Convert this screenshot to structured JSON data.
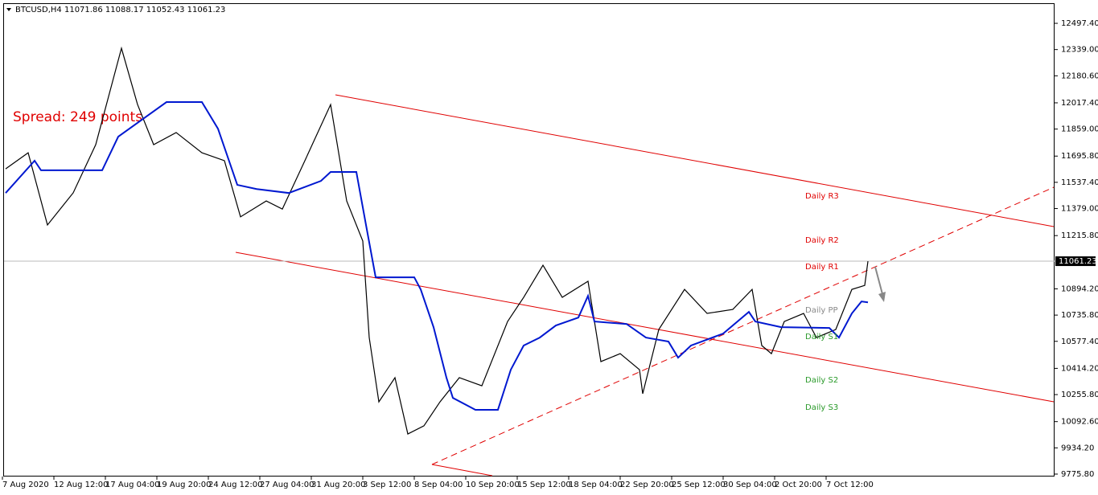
{
  "chart_data": {
    "type": "line",
    "title": "BTCUSD,H4  11071.86 11088.17 11052.43 11061.23",
    "subtitle": "Spread: 249 points",
    "xlim": [
      0,
      327
    ],
    "xticks": [
      {
        "value": 0,
        "label": "7 Aug 2020"
      },
      {
        "value": 16,
        "label": "12 Aug 12:00"
      },
      {
        "value": 32,
        "label": "17 Aug 04:00"
      },
      {
        "value": 48,
        "label": "19 Aug 20:00"
      },
      {
        "value": 64,
        "label": "24 Aug 12:00"
      },
      {
        "value": 80,
        "label": "27 Aug 04:00"
      },
      {
        "value": 96,
        "label": "31 Aug 20:00"
      },
      {
        "value": 112,
        "label": "3 Sep 12:00"
      },
      {
        "value": 128,
        "label": "8 Sep 04:00"
      },
      {
        "value": 144,
        "label": "10 Sep 20:00"
      },
      {
        "value": 160,
        "label": "15 Sep 12:00"
      },
      {
        "value": 176,
        "label": "18 Sep 04:00"
      },
      {
        "value": 192,
        "label": "22 Sep 20:00"
      },
      {
        "value": 208,
        "label": "25 Sep 12:00"
      },
      {
        "value": 224,
        "label": "30 Sep 04:00"
      },
      {
        "value": 240,
        "label": "2 Oct 20:00"
      },
      {
        "value": 256,
        "label": "7 Oct 12:00"
      }
    ],
    "ylim": [
      9766,
      12614
    ],
    "yticks": [
      {
        "value": 12497.4,
        "label": "12497.40"
      },
      {
        "value": 12339,
        "label": "12339.00"
      },
      {
        "value": 12180.6,
        "label": "12180.60"
      },
      {
        "value": 12017.4,
        "label": "12017.40"
      },
      {
        "value": 11859,
        "label": "11859.00"
      },
      {
        "value": 11695.8,
        "label": "11695.80"
      },
      {
        "value": 11537.4,
        "label": "11537.40"
      },
      {
        "value": 11379,
        "label": "11379.00"
      },
      {
        "value": 11215.8,
        "label": "11215.80"
      },
      {
        "value": 10894.2,
        "label": "10894.20"
      },
      {
        "value": 10735.8,
        "label": "10735.80"
      },
      {
        "value": 10577.4,
        "label": "10577.40"
      },
      {
        "value": 10414.2,
        "label": "10414.20"
      },
      {
        "value": 10255.8,
        "label": "10255.80"
      },
      {
        "value": 10092.6,
        "label": "10092.60"
      },
      {
        "value": 9934.2,
        "label": "9934.20"
      },
      {
        "value": 9775.8,
        "label": "9775.80"
      }
    ],
    "current_price": 11061.23,
    "series": [
      {
        "color": "#000000",
        "x": [
          1,
          8,
          14,
          22,
          29,
          37,
          42,
          47,
          54,
          62,
          69,
          74,
          82,
          87,
          94,
          102,
          107,
          112,
          114,
          117,
          122,
          126,
          131,
          136,
          142,
          149,
          157,
          162,
          168,
          174,
          182,
          186,
          192,
          198,
          199,
          204,
          212,
          219,
          227,
          233,
          236,
          239,
          243,
          249,
          253,
          259,
          264,
          268,
          269
        ],
        "values": [
          11619,
          11716,
          11280,
          11474,
          11765,
          12347,
          12007,
          11765,
          11838,
          11716,
          11668,
          11329,
          11425,
          11376,
          11668,
          12007,
          11425,
          11183,
          10600,
          10212,
          10358,
          10018,
          10067,
          10212,
          10358,
          10309,
          10697,
          10843,
          11037,
          10843,
          10940,
          10455,
          10503,
          10406,
          10261,
          10649,
          10891,
          10746,
          10770,
          10891,
          10552,
          10503,
          10697,
          10746,
          10600,
          10649,
          10891,
          10915,
          11061
        ]
      },
      {
        "color": "#0018d0",
        "x": [
          1,
          10,
          12,
          31,
          36,
          51,
          62,
          67,
          73,
          79,
          89,
          99,
          102,
          110,
          113,
          116,
          128,
          130,
          134,
          138,
          140,
          147,
          154,
          158,
          162,
          167,
          172,
          179,
          182,
          184,
          194,
          200,
          207,
          210,
          214,
          224,
          232,
          234,
          242,
          257,
          260,
          264,
          267,
          269
        ],
        "values": [
          11473,
          11668,
          11610,
          11610,
          11813,
          12022,
          12022,
          11861,
          11522,
          11497,
          11473,
          11546,
          11600,
          11600,
          11280,
          10964,
          10964,
          10891,
          10663,
          10358,
          10236,
          10164,
          10164,
          10406,
          10552,
          10600,
          10673,
          10721,
          10852,
          10697,
          10682,
          10600,
          10576,
          10479,
          10552,
          10624,
          10755,
          10697,
          10663,
          10658,
          10600,
          10746,
          10818,
          10813
        ]
      }
    ],
    "annotations": [
      "Daily R3",
      "Daily R2",
      "Daily R1",
      "Daily PP",
      "Daily S1",
      "Daily S2",
      "Daily S3"
    ]
  }
}
